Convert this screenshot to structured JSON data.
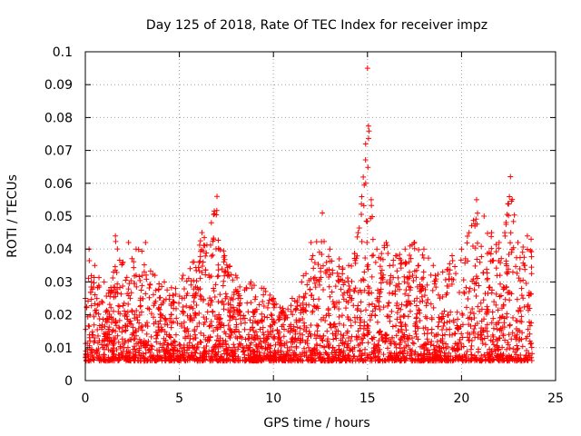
{
  "chart_data": {
    "type": "scatter",
    "title": "Day 125 of 2018, Rate Of TEC Index for receiver impz",
    "xlabel": "GPS time / hours",
    "ylabel": "ROTI / TECUs",
    "xlim": [
      0,
      25
    ],
    "ylim": [
      0,
      0.1
    ],
    "xticks": [
      "0",
      "5",
      "10",
      "15",
      "20",
      "25"
    ],
    "yticks": [
      "0",
      "0.01",
      "0.02",
      "0.03",
      "0.04",
      "0.05",
      "0.06",
      "0.07",
      "0.08",
      "0.09",
      "0.1"
    ],
    "grid": true,
    "marker": "plus",
    "series": [
      {
        "name": "ROTI",
        "color": "#ff0000",
        "envelope": [
          {
            "x": 0.0,
            "y": 0.025
          },
          {
            "x": 0.2,
            "y": 0.04
          },
          {
            "x": 0.5,
            "y": 0.035
          },
          {
            "x": 1.0,
            "y": 0.03
          },
          {
            "x": 1.5,
            "y": 0.033
          },
          {
            "x": 1.6,
            "y": 0.044
          },
          {
            "x": 2.0,
            "y": 0.036
          },
          {
            "x": 2.3,
            "y": 0.042
          },
          {
            "x": 2.7,
            "y": 0.04
          },
          {
            "x": 3.2,
            "y": 0.042
          },
          {
            "x": 3.7,
            "y": 0.032
          },
          {
            "x": 4.2,
            "y": 0.03
          },
          {
            "x": 4.8,
            "y": 0.028
          },
          {
            "x": 5.2,
            "y": 0.032
          },
          {
            "x": 5.7,
            "y": 0.036
          },
          {
            "x": 6.2,
            "y": 0.045
          },
          {
            "x": 6.7,
            "y": 0.048
          },
          {
            "x": 7.0,
            "y": 0.056
          },
          {
            "x": 7.4,
            "y": 0.038
          },
          {
            "x": 8.0,
            "y": 0.032
          },
          {
            "x": 8.8,
            "y": 0.03
          },
          {
            "x": 9.5,
            "y": 0.028
          },
          {
            "x": 10.0,
            "y": 0.025
          },
          {
            "x": 10.5,
            "y": 0.022
          },
          {
            "x": 11.0,
            "y": 0.025
          },
          {
            "x": 11.5,
            "y": 0.03
          },
          {
            "x": 12.0,
            "y": 0.042
          },
          {
            "x": 12.6,
            "y": 0.051
          },
          {
            "x": 13.0,
            "y": 0.04
          },
          {
            "x": 13.5,
            "y": 0.037
          },
          {
            "x": 14.0,
            "y": 0.035
          },
          {
            "x": 14.5,
            "y": 0.045
          },
          {
            "x": 14.9,
            "y": 0.072
          },
          {
            "x": 15.0,
            "y": 0.095
          },
          {
            "x": 15.2,
            "y": 0.055
          },
          {
            "x": 15.5,
            "y": 0.04
          },
          {
            "x": 16.0,
            "y": 0.042
          },
          {
            "x": 16.5,
            "y": 0.038
          },
          {
            "x": 17.0,
            "y": 0.04
          },
          {
            "x": 17.5,
            "y": 0.042
          },
          {
            "x": 18.0,
            "y": 0.04
          },
          {
            "x": 18.5,
            "y": 0.035
          },
          {
            "x": 19.0,
            "y": 0.033
          },
          {
            "x": 19.5,
            "y": 0.038
          },
          {
            "x": 20.0,
            "y": 0.04
          },
          {
            "x": 20.4,
            "y": 0.045
          },
          {
            "x": 20.8,
            "y": 0.055
          },
          {
            "x": 21.2,
            "y": 0.05
          },
          {
            "x": 21.6,
            "y": 0.045
          },
          {
            "x": 22.0,
            "y": 0.042
          },
          {
            "x": 22.3,
            "y": 0.045
          },
          {
            "x": 22.6,
            "y": 0.062
          },
          {
            "x": 23.0,
            "y": 0.042
          },
          {
            "x": 23.5,
            "y": 0.044
          },
          {
            "x": 23.7,
            "y": 0.043
          }
        ],
        "baseline_min": 0.006,
        "x_range": [
          0,
          23.75
        ],
        "approx_point_count": 3000
      }
    ]
  }
}
